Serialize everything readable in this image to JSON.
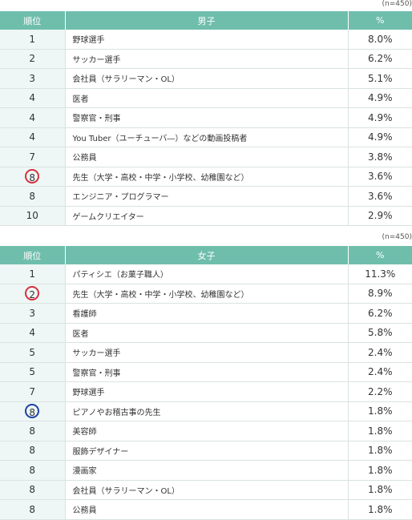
{
  "boys": {
    "note": "(n=450)",
    "header": {
      "rank": "順位",
      "job": "男子",
      "pct": "%"
    },
    "rows": [
      {
        "rank": "1",
        "job": "野球選手",
        "pct": "8.0%"
      },
      {
        "rank": "2",
        "job": "サッカー選手",
        "pct": "6.2%"
      },
      {
        "rank": "3",
        "job": "会社員（サラリーマン・OL）",
        "pct": "5.1%"
      },
      {
        "rank": "4",
        "job": "医者",
        "pct": "4.9%"
      },
      {
        "rank": "4",
        "job": "警察官・刑事",
        "pct": "4.9%"
      },
      {
        "rank": "4",
        "job": "You Tuber（ユーチューバ―）などの動画投稿者",
        "pct": "4.9%"
      },
      {
        "rank": "7",
        "job": "公務員",
        "pct": "3.8%"
      },
      {
        "rank": "8",
        "job": "先生（大学・高校・中学・小学校、幼稚園など）",
        "pct": "3.6%",
        "circle": "red"
      },
      {
        "rank": "8",
        "job": "エンジニア・プログラマー",
        "pct": "3.6%"
      },
      {
        "rank": "10",
        "job": "ゲームクリエイター",
        "pct": "2.9%"
      }
    ]
  },
  "girls": {
    "note": "(n=450)",
    "header": {
      "rank": "順位",
      "job": "女子",
      "pct": "%"
    },
    "rows": [
      {
        "rank": "1",
        "job": "パティシエ（お菓子職人）",
        "pct": "11.3%"
      },
      {
        "rank": "2",
        "job": "先生（大学・高校・中学・小学校、幼稚園など）",
        "pct": "8.9%",
        "circle": "red"
      },
      {
        "rank": "3",
        "job": "看護師",
        "pct": "6.2%"
      },
      {
        "rank": "4",
        "job": "医者",
        "pct": "5.8%"
      },
      {
        "rank": "5",
        "job": "サッカー選手",
        "pct": "2.4%"
      },
      {
        "rank": "5",
        "job": "警察官・刑事",
        "pct": "2.4%"
      },
      {
        "rank": "7",
        "job": "野球選手",
        "pct": "2.2%"
      },
      {
        "rank": "8",
        "job": "ピアノやお稽古事の先生",
        "pct": "1.8%",
        "circle": "blue"
      },
      {
        "rank": "8",
        "job": "美容師",
        "pct": "1.8%"
      },
      {
        "rank": "8",
        "job": "服飾デザイナー",
        "pct": "1.8%"
      },
      {
        "rank": "8",
        "job": "漫画家",
        "pct": "1.8%"
      },
      {
        "rank": "8",
        "job": "会社員（サラリーマン・OL）",
        "pct": "1.8%"
      },
      {
        "rank": "8",
        "job": "公務員",
        "pct": "1.8%"
      }
    ]
  }
}
